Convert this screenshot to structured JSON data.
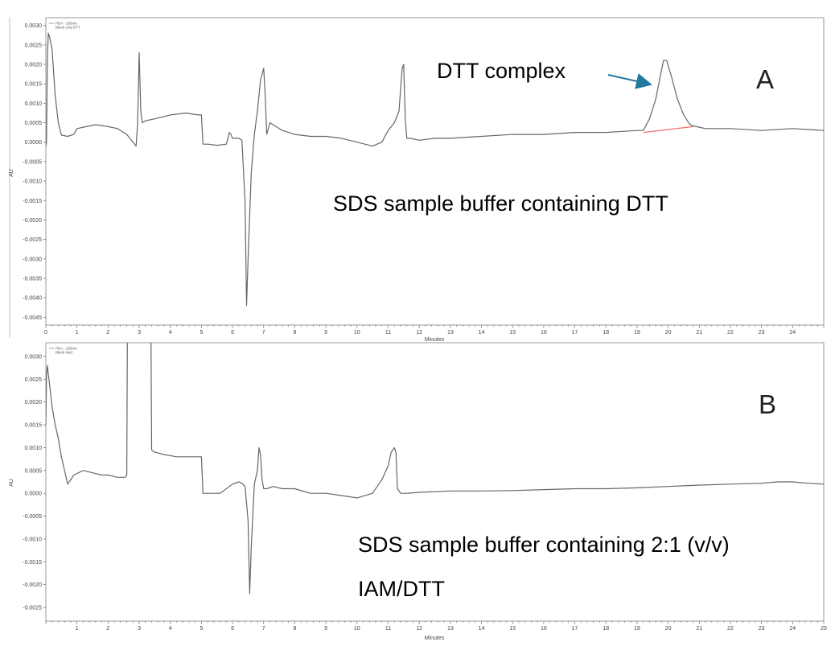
{
  "chart_data": [
    {
      "type": "line",
      "panel_label": "A",
      "xlabel": "Minutes",
      "ylabel": "AU",
      "xlim": [
        0,
        25
      ],
      "ylim": [
        -0.0047,
        0.0032
      ],
      "x_ticks": [
        "0",
        "1",
        "2",
        "3",
        "4",
        "5",
        "6",
        "7",
        "8",
        "9",
        "10",
        "11",
        "12",
        "13",
        "14",
        "15",
        "16",
        "17",
        "18",
        "19",
        "20",
        "21",
        "22",
        "23",
        "24"
      ],
      "y_ticks": [
        "0.0030",
        "0.0025",
        "0.0020",
        "0.0015",
        "0.0010",
        "0.0005",
        "0.0000",
        "-0.0005",
        "-0.0010",
        "-0.0015",
        "-0.0020",
        "-0.0025",
        "-0.0030",
        "-0.0035",
        "-0.0040",
        "-0.0045"
      ],
      "legend": [
        "PDA - 205nm",
        "Blank only DTT"
      ],
      "annotations": {
        "peak_label": "DTT complex",
        "condition": "SDS sample buffer containing DTT"
      },
      "baseline_segment": {
        "x": [
          19.2,
          20.8
        ],
        "y": [
          0.00025,
          0.0004
        ],
        "color": "#f06b6b"
      },
      "series": [
        {
          "color": "#666666",
          "x": [
            0.0,
            0.02,
            0.05,
            0.08,
            0.12,
            0.2,
            0.3,
            0.4,
            0.5,
            0.7,
            0.9,
            1.0,
            1.3,
            1.6,
            2.0,
            2.3,
            2.6,
            2.8,
            2.9,
            2.95,
            3.0,
            3.05,
            3.1,
            3.2,
            3.5,
            4.0,
            4.5,
            4.9,
            5.0,
            5.05,
            5.2,
            5.5,
            5.8,
            5.9,
            5.95,
            6.0,
            6.1,
            6.2,
            6.3,
            6.4,
            6.45,
            6.5,
            6.6,
            6.7,
            6.8,
            6.9,
            7.0,
            7.05,
            7.1,
            7.2,
            7.4,
            7.6,
            7.8,
            8.0,
            8.5,
            9.0,
            9.5,
            10.0,
            10.5,
            10.8,
            11.0,
            11.2,
            11.35,
            11.45,
            11.5,
            11.55,
            11.6,
            11.7,
            12.0,
            12.5,
            13.0,
            14.0,
            15.0,
            16.0,
            17.0,
            18.0,
            19.0,
            19.2,
            19.4,
            19.6,
            19.75,
            19.85,
            19.95,
            20.1,
            20.3,
            20.5,
            20.7,
            20.9,
            21.2,
            22.0,
            23.0,
            24.0,
            25.0
          ],
          "y": [
            -0.0001,
            0.0,
            0.0022,
            0.0028,
            0.0027,
            0.0024,
            0.0012,
            0.0005,
            0.00018,
            0.00015,
            0.0002,
            0.00035,
            0.0004,
            0.00045,
            0.0004,
            0.00035,
            0.0002,
            0.0,
            -0.0001,
            0.0005,
            0.0023,
            0.0008,
            0.0005,
            0.00055,
            0.0006,
            0.0007,
            0.00075,
            0.0007,
            0.0007,
            -5e-05,
            -5e-05,
            -8e-05,
            -5e-05,
            0.00025,
            0.0002,
            0.0001,
            0.0001,
            0.0001,
            5e-05,
            -0.0015,
            -0.0042,
            -0.003,
            -0.0008,
            0.0002,
            0.0008,
            0.0016,
            0.0019,
            0.0012,
            0.0002,
            0.0005,
            0.0004,
            0.0003,
            0.00025,
            0.0002,
            0.00015,
            0.00015,
            0.0001,
            0.0,
            -0.0001,
            0.0,
            0.0003,
            0.0005,
            0.0008,
            0.0019,
            0.002,
            0.0006,
            0.0001,
            0.0001,
            5e-05,
            0.0001,
            0.0001,
            0.00015,
            0.0002,
            0.0002,
            0.00025,
            0.00025,
            0.0003,
            0.0003,
            0.0006,
            0.0011,
            0.0017,
            0.0021,
            0.0021,
            0.0017,
            0.0011,
            0.0007,
            0.00045,
            0.0004,
            0.00035,
            0.00035,
            0.0003,
            0.00035,
            0.0003
          ]
        }
      ]
    },
    {
      "type": "line",
      "panel_label": "B",
      "xlabel": "Minutes",
      "ylabel": "AU",
      "xlim": [
        0,
        25
      ],
      "ylim": [
        -0.0028,
        0.0033
      ],
      "x_ticks": [
        "1",
        "2",
        "3",
        "4",
        "5",
        "6",
        "7",
        "8",
        "9",
        "10",
        "11",
        "12",
        "13",
        "14",
        "15",
        "16",
        "17",
        "18",
        "19",
        "20",
        "21",
        "22",
        "23",
        "24",
        "25"
      ],
      "y_ticks": [
        "0.0030",
        "0.0025",
        "0.0020",
        "0.0015",
        "0.0010",
        "0.0005",
        "0.0000",
        "-0.0005",
        "-0.0010",
        "-0.0015",
        "-0.0020",
        "-0.0025"
      ],
      "legend": [
        "PDA - 205nm",
        "Blank Ned"
      ],
      "annotations": {
        "condition_line1": "SDS sample buffer containing 2:1 (v/v)",
        "condition_line2": "IAM/DTT"
      },
      "series": [
        {
          "color": "#666666",
          "x": [
            0.0,
            0.02,
            0.05,
            0.08,
            0.1,
            0.15,
            0.2,
            0.3,
            0.4,
            0.5,
            0.7,
            0.9,
            1.2,
            1.5,
            1.8,
            2.0,
            2.3,
            2.55,
            2.6,
            2.62,
            2.68,
            2.7,
            3.3,
            3.32,
            3.38,
            3.4,
            3.5,
            3.8,
            4.2,
            4.6,
            4.9,
            5.0,
            5.05,
            5.2,
            5.6,
            6.0,
            6.2,
            6.3,
            6.4,
            6.5,
            6.55,
            6.6,
            6.7,
            6.8,
            6.85,
            6.9,
            6.95,
            7.0,
            7.1,
            7.3,
            7.6,
            8.0,
            8.5,
            9.0,
            9.5,
            10.0,
            10.5,
            10.8,
            11.0,
            11.1,
            11.2,
            11.25,
            11.3,
            11.4,
            11.6,
            12.0,
            13.0,
            14.0,
            15.0,
            16.0,
            17.0,
            18.0,
            19.0,
            20.0,
            21.0,
            22.0,
            23.0,
            23.5,
            24.0,
            24.5,
            25.0
          ],
          "y": [
            0.0015,
            0.0026,
            0.0028,
            0.0026,
            0.0025,
            0.0022,
            0.0019,
            0.0015,
            0.0012,
            0.0008,
            0.0002,
            0.0004,
            0.0005,
            0.00045,
            0.0004,
            0.0004,
            0.00035,
            0.00035,
            0.0004,
            0.0034,
            0.0034,
            0.0034,
            0.0034,
            0.0034,
            0.0034,
            0.00095,
            0.0009,
            0.00085,
            0.0008,
            0.0008,
            0.0008,
            0.0008,
            0.0,
            0.0,
            0.0,
            0.0002,
            0.00025,
            0.00022,
            0.00015,
            -0.0006,
            -0.0022,
            -0.0012,
            0.0002,
            0.0005,
            0.001,
            0.00085,
            0.0003,
            0.0001,
            0.0001,
            0.00015,
            0.0001,
            0.0001,
            0.0,
            0.0,
            -5e-05,
            -0.0001,
            0.0,
            0.0003,
            0.0006,
            0.0009,
            0.001,
            0.0009,
            0.0001,
            0.0,
            0.0,
            2e-05,
            5e-05,
            5e-05,
            6e-05,
            8e-05,
            0.0001,
            0.0001,
            0.00012,
            0.00015,
            0.00018,
            0.0002,
            0.00022,
            0.00025,
            0.00025,
            0.00022,
            0.0002
          ]
        }
      ]
    }
  ]
}
